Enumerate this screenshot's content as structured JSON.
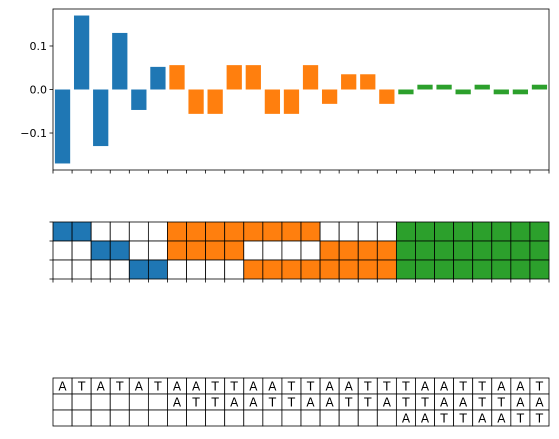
{
  "chart_data": [
    {
      "type": "bar",
      "ylim": [
        -0.185,
        0.185
      ],
      "yticks": [
        -0.1,
        0.0,
        0.1
      ],
      "ytick_labels": [
        "−0.1",
        "0.0",
        "0.1"
      ],
      "grid": false,
      "bars": [
        {
          "x": 0,
          "value": -0.17,
          "color": "#1f77b4"
        },
        {
          "x": 1,
          "value": 0.17,
          "color": "#1f77b4"
        },
        {
          "x": 2,
          "value": -0.13,
          "color": "#1f77b4"
        },
        {
          "x": 3,
          "value": 0.13,
          "color": "#1f77b4"
        },
        {
          "x": 4,
          "value": -0.047,
          "color": "#1f77b4"
        },
        {
          "x": 5,
          "value": 0.052,
          "color": "#1f77b4"
        },
        {
          "x": 6,
          "value": 0.056,
          "color": "#ff7f0e"
        },
        {
          "x": 7,
          "value": -0.056,
          "color": "#ff7f0e"
        },
        {
          "x": 8,
          "value": -0.056,
          "color": "#ff7f0e"
        },
        {
          "x": 9,
          "value": 0.056,
          "color": "#ff7f0e"
        },
        {
          "x": 10,
          "value": 0.056,
          "color": "#ff7f0e"
        },
        {
          "x": 11,
          "value": -0.056,
          "color": "#ff7f0e"
        },
        {
          "x": 12,
          "value": -0.056,
          "color": "#ff7f0e"
        },
        {
          "x": 13,
          "value": 0.056,
          "color": "#ff7f0e"
        },
        {
          "x": 14,
          "value": -0.033,
          "color": "#ff7f0e"
        },
        {
          "x": 15,
          "value": 0.035,
          "color": "#ff7f0e"
        },
        {
          "x": 16,
          "value": 0.035,
          "color": "#ff7f0e"
        },
        {
          "x": 17,
          "value": -0.033,
          "color": "#ff7f0e"
        },
        {
          "x": 18,
          "value": -0.011,
          "color": "#2ca02c"
        },
        {
          "x": 19,
          "value": 0.011,
          "color": "#2ca02c"
        },
        {
          "x": 20,
          "value": 0.011,
          "color": "#2ca02c"
        },
        {
          "x": 21,
          "value": -0.011,
          "color": "#2ca02c"
        },
        {
          "x": 22,
          "value": 0.011,
          "color": "#2ca02c"
        },
        {
          "x": 23,
          "value": -0.011,
          "color": "#2ca02c"
        },
        {
          "x": 24,
          "value": -0.011,
          "color": "#2ca02c"
        },
        {
          "x": 25,
          "value": 0.011,
          "color": "#2ca02c"
        }
      ]
    },
    {
      "type": "heatmap",
      "columns": 26,
      "rows": [
        "BBWWWWOOOOOOOOWWWWGGGGGGGG",
        "WWBBWWOOOOWWWWOOOOGGGGGGGG",
        "WWWWBBWWWWOOOOOOOOGGGGGGGG"
      ],
      "colors": {
        "B": "#1f77b4",
        "O": "#ff7f0e",
        "G": "#2ca02c",
        "W": "#ffffff"
      }
    },
    {
      "type": "table",
      "columns": 26,
      "rows": [
        [
          "A",
          "T",
          "A",
          "T",
          "A",
          "T",
          "A",
          "A",
          "T",
          "T",
          "A",
          "A",
          "T",
          "T",
          "A",
          "A",
          "T",
          "T",
          "T",
          "A",
          "A",
          "T",
          "T",
          "A",
          "A",
          "T"
        ],
        [
          "",
          "",
          "",
          "",
          "",
          "",
          "A",
          "T",
          "T",
          "A",
          "A",
          "T",
          "T",
          "A",
          "A",
          "T",
          "T",
          "A",
          "T",
          "T",
          "A",
          "A",
          "T",
          "T",
          "A",
          "A"
        ],
        [
          "",
          "",
          "",
          "",
          "",
          "",
          "",
          "",
          "",
          "",
          "",
          "",
          "",
          "",
          "",
          "",
          "",
          "",
          "A",
          "A",
          "T",
          "T",
          "A",
          "A",
          "T",
          "T"
        ]
      ]
    }
  ]
}
